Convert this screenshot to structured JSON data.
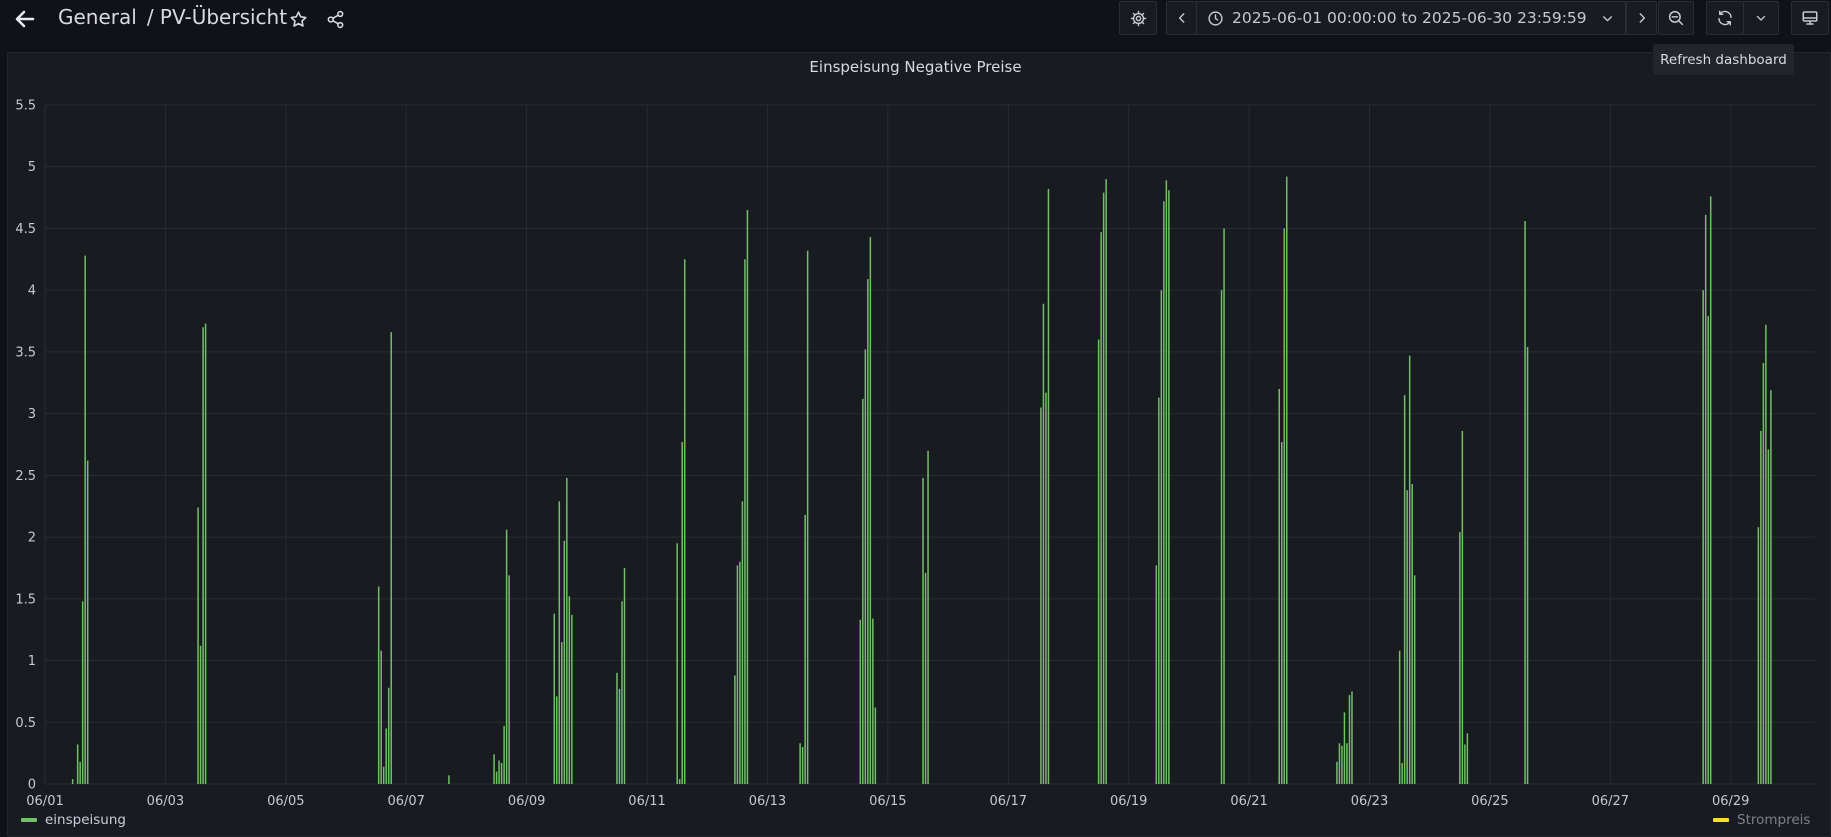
{
  "header": {
    "breadcrumb_folder": "General",
    "breadcrumb_dashboard": "/ PV-Übersicht"
  },
  "toolbar": {
    "time_range": "2025-06-01 00:00:00 to 2025-06-30 23:59:59",
    "tooltip": "Refresh dashboard"
  },
  "icons": {
    "back": "arrow-left-icon",
    "star": "star-icon",
    "share": "share-icon",
    "settings": "gear-icon",
    "prev": "chevron-left-icon",
    "clock": "clock-icon",
    "dropdown": "chevron-down-icon",
    "next": "chevron-right-icon",
    "zoom_out": "zoom-out-icon",
    "refresh": "refresh-icon",
    "refresh_dropdown": "chevron-down-icon",
    "tv": "monitor-icon"
  },
  "colors": {
    "einspeisung": "#73bf69",
    "strompreis": "#fade2a"
  },
  "chart_data": {
    "type": "bar",
    "title": "Einspeisung Negative Preise",
    "xlabel": "",
    "ylabel": "",
    "ylim": [
      0,
      5.5
    ],
    "xlim": [
      "2025-06-01",
      "2025-06-30"
    ],
    "y_ticks": [
      "0",
      "0.5",
      "1",
      "1.5",
      "2",
      "2.5",
      "3",
      "3.5",
      "4",
      "4.5",
      "5",
      "5.5"
    ],
    "x_ticks": [
      "06/01",
      "06/03",
      "06/05",
      "06/07",
      "06/09",
      "06/11",
      "06/13",
      "06/15",
      "06/17",
      "06/19",
      "06/21",
      "06/23",
      "06/25",
      "06/27",
      "06/29"
    ],
    "grid": true,
    "legend_position": "bottom",
    "series": [
      {
        "name": "einspeisung",
        "points": [
          [
            "2025-06-01 11:00",
            0.04
          ],
          [
            "2025-06-01 13:00",
            0.32
          ],
          [
            "2025-06-01 14:00",
            0.18
          ],
          [
            "2025-06-01 15:00",
            1.48
          ],
          [
            "2025-06-01 16:00",
            4.28
          ],
          [
            "2025-06-01 17:00",
            2.62
          ],
          [
            "2025-06-03 13:00",
            2.24
          ],
          [
            "2025-06-03 14:00",
            1.12
          ],
          [
            "2025-06-03 15:00",
            3.7
          ],
          [
            "2025-06-03 16:00",
            3.73
          ],
          [
            "2025-06-06 13:00",
            1.6
          ],
          [
            "2025-06-06 14:00",
            1.08
          ],
          [
            "2025-06-06 15:00",
            0.14
          ],
          [
            "2025-06-06 16:00",
            0.45
          ],
          [
            "2025-06-06 17:00",
            0.78
          ],
          [
            "2025-06-06 18:00",
            3.66
          ],
          [
            "2025-06-07 17:00",
            0.07
          ],
          [
            "2025-06-08 11:00",
            0.24
          ],
          [
            "2025-06-08 12:00",
            0.1
          ],
          [
            "2025-06-08 13:00",
            0.19
          ],
          [
            "2025-06-08 14:00",
            0.17
          ],
          [
            "2025-06-08 15:00",
            0.47
          ],
          [
            "2025-06-08 16:00",
            2.06
          ],
          [
            "2025-06-08 17:00",
            1.69
          ],
          [
            "2025-06-09 11:00",
            1.38
          ],
          [
            "2025-06-09 12:00",
            0.71
          ],
          [
            "2025-06-09 13:00",
            2.29
          ],
          [
            "2025-06-09 14:00",
            1.15
          ],
          [
            "2025-06-09 15:00",
            1.97
          ],
          [
            "2025-06-09 16:00",
            2.48
          ],
          [
            "2025-06-09 17:00",
            1.52
          ],
          [
            "2025-06-09 18:00",
            1.37
          ],
          [
            "2025-06-10 12:00",
            0.9
          ],
          [
            "2025-06-10 13:00",
            0.77
          ],
          [
            "2025-06-10 14:00",
            1.48
          ],
          [
            "2025-06-10 15:00",
            1.75
          ],
          [
            "2025-06-11 12:00",
            1.95
          ],
          [
            "2025-06-11 13:00",
            0.04
          ],
          [
            "2025-06-11 14:00",
            2.77
          ],
          [
            "2025-06-11 15:00",
            4.25
          ],
          [
            "2025-06-12 11:00",
            0.88
          ],
          [
            "2025-06-12 12:00",
            1.77
          ],
          [
            "2025-06-12 13:00",
            1.8
          ],
          [
            "2025-06-12 14:00",
            2.29
          ],
          [
            "2025-06-12 15:00",
            4.25
          ],
          [
            "2025-06-12 16:00",
            4.65
          ],
          [
            "2025-06-13 13:00",
            0.33
          ],
          [
            "2025-06-13 14:00",
            0.3
          ],
          [
            "2025-06-13 15:00",
            2.18
          ],
          [
            "2025-06-13 16:00",
            4.32
          ],
          [
            "2025-06-14 13:00",
            1.33
          ],
          [
            "2025-06-14 14:00",
            3.12
          ],
          [
            "2025-06-14 15:00",
            3.52
          ],
          [
            "2025-06-14 16:00",
            4.09
          ],
          [
            "2025-06-14 17:00",
            4.43
          ],
          [
            "2025-06-14 18:00",
            1.34
          ],
          [
            "2025-06-14 19:00",
            0.62
          ],
          [
            "2025-06-15 14:00",
            2.48
          ],
          [
            "2025-06-15 15:00",
            1.71
          ],
          [
            "2025-06-15 16:00",
            2.7
          ],
          [
            "2025-06-17 13:00",
            3.05
          ],
          [
            "2025-06-17 14:00",
            3.89
          ],
          [
            "2025-06-17 15:00",
            3.17
          ],
          [
            "2025-06-17 16:00",
            4.82
          ],
          [
            "2025-06-18 12:00",
            3.6
          ],
          [
            "2025-06-18 13:00",
            4.47
          ],
          [
            "2025-06-18 14:00",
            4.79
          ],
          [
            "2025-06-18 15:00",
            4.9
          ],
          [
            "2025-06-19 11:00",
            1.77
          ],
          [
            "2025-06-19 12:00",
            3.13
          ],
          [
            "2025-06-19 13:00",
            4.0
          ],
          [
            "2025-06-19 14:00",
            4.72
          ],
          [
            "2025-06-19 15:00",
            4.89
          ],
          [
            "2025-06-19 16:00",
            4.81
          ],
          [
            "2025-06-20 13:00",
            4.0
          ],
          [
            "2025-06-20 14:00",
            4.5
          ],
          [
            "2025-06-21 12:00",
            3.2
          ],
          [
            "2025-06-21 13:00",
            2.77
          ],
          [
            "2025-06-21 14:00",
            4.5
          ],
          [
            "2025-06-21 15:00",
            4.92
          ],
          [
            "2025-06-22 11:00",
            0.18
          ],
          [
            "2025-06-22 12:00",
            0.33
          ],
          [
            "2025-06-22 13:00",
            0.31
          ],
          [
            "2025-06-22 14:00",
            0.58
          ],
          [
            "2025-06-22 15:00",
            0.33
          ],
          [
            "2025-06-22 16:00",
            0.72
          ],
          [
            "2025-06-22 17:00",
            0.75
          ],
          [
            "2025-06-23 12:00",
            1.08
          ],
          [
            "2025-06-23 13:00",
            0.17
          ],
          [
            "2025-06-23 14:00",
            3.15
          ],
          [
            "2025-06-23 15:00",
            2.38
          ],
          [
            "2025-06-23 16:00",
            3.47
          ],
          [
            "2025-06-23 17:00",
            2.43
          ],
          [
            "2025-06-23 18:00",
            1.69
          ],
          [
            "2025-06-24 12:00",
            2.04
          ],
          [
            "2025-06-24 13:00",
            2.86
          ],
          [
            "2025-06-24 14:00",
            0.32
          ],
          [
            "2025-06-24 15:00",
            0.41
          ],
          [
            "2025-06-25 14:00",
            4.56
          ],
          [
            "2025-06-25 15:00",
            3.54
          ],
          [
            "2025-06-28 13:00",
            4.0
          ],
          [
            "2025-06-28 14:00",
            4.61
          ],
          [
            "2025-06-28 15:00",
            3.79
          ],
          [
            "2025-06-28 16:00",
            4.76
          ],
          [
            "2025-06-29 11:00",
            2.08
          ],
          [
            "2025-06-29 12:00",
            2.86
          ],
          [
            "2025-06-29 13:00",
            3.41
          ],
          [
            "2025-06-29 14:00",
            3.72
          ],
          [
            "2025-06-29 15:00",
            2.71
          ],
          [
            "2025-06-29 16:00",
            3.19
          ]
        ]
      },
      {
        "name": "Strompreis",
        "points": []
      }
    ]
  }
}
